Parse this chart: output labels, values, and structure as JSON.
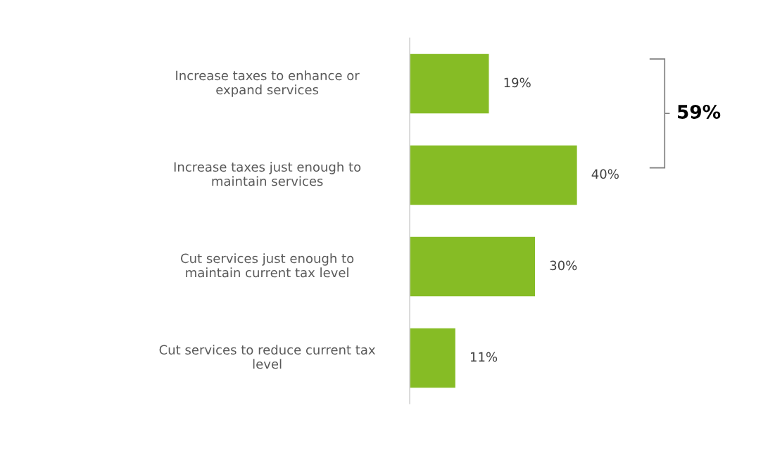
{
  "chart_data": {
    "type": "bar",
    "orientation": "horizontal",
    "categories": [
      "Increase taxes to enhance or expand services",
      "Increase taxes just enough to maintain services",
      "Cut services just enough to maintain current tax level",
      "Cut services to reduce current tax level"
    ],
    "values": [
      19,
      40,
      30,
      11
    ],
    "color": "#86bc25",
    "data_labels": true,
    "value_labels": [
      "19%",
      "40%",
      "30%",
      "11%"
    ],
    "annotations": [
      "59%"
    ],
    "grid": false,
    "legend": false
  }
}
